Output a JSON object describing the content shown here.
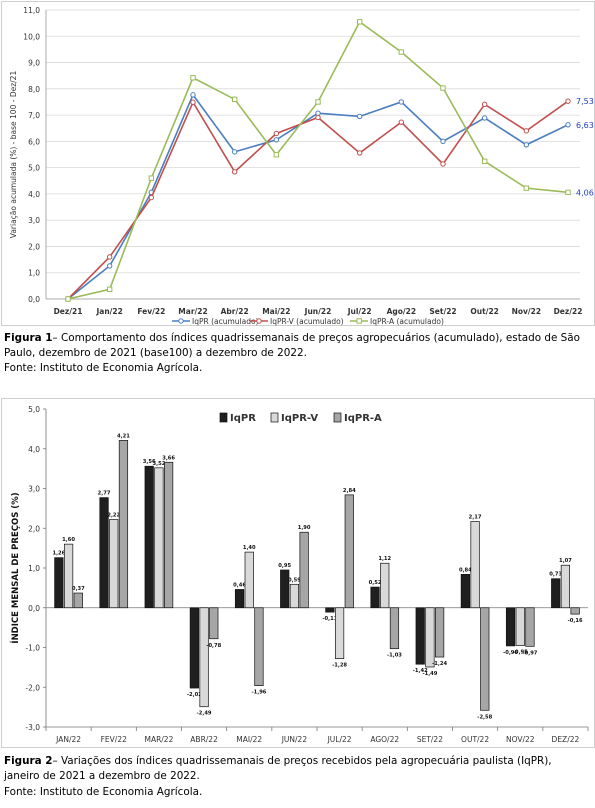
{
  "figure1": {
    "chart_data": {
      "type": "line",
      "title": "",
      "xlabel": "",
      "ylabel": "Variação acumulada (%) - base 100 - Dez/21",
      "ylim": [
        0,
        11
      ],
      "yticks": [
        "0,0",
        "1,0",
        "2,0",
        "3,0",
        "4,0",
        "5,0",
        "6,0",
        "7,0",
        "8,0",
        "9,0",
        "10,0",
        "11,0"
      ],
      "categories": [
        "Dez/21",
        "Jan/22",
        "Fev/22",
        "Mar/22",
        "Abr/22",
        "Mai/22",
        "Jun/22",
        "Jul/22",
        "Ago/22",
        "Set/22",
        "Out/22",
        "Nov/22",
        "Dez/22"
      ],
      "grid": true,
      "legend": "bottom",
      "series": [
        {
          "name": "IqPR (acumulado)",
          "color": "#4a7ebf",
          "values": [
            0,
            1.26,
            4.06,
            7.77,
            5.6,
            6.06,
            7.07,
            6.95,
            7.5,
            6.0,
            6.89,
            5.87,
            6.63
          ],
          "end_label": "6,63",
          "end_label_color": "#1f3fbf"
        },
        {
          "name": "IqPR-V (acumulado)",
          "color": "#c0504d",
          "values": [
            0,
            1.6,
            3.86,
            7.49,
            4.84,
            6.3,
            6.91,
            5.56,
            6.73,
            5.14,
            7.41,
            6.4,
            7.53
          ],
          "end_label": "7,53",
          "end_label_color": "#1f3fbf"
        },
        {
          "name": "IqPR-A (acumulado)",
          "color": "#9bbb59",
          "values": [
            0,
            0.37,
            4.6,
            8.42,
            7.6,
            5.49,
            7.5,
            10.55,
            9.4,
            8.03,
            5.24,
            4.22,
            4.06
          ],
          "end_label": "4,06",
          "end_label_color": "#1f3fbf"
        }
      ]
    },
    "caption_label": "Figura 1",
    "caption_text": "– Comportamento dos índices quadrissemanais de preços agropecuários (acumulado), estado de São Paulo, dezembro de 2021 (base100) a dezembro de 2022.",
    "source": "Fonte: Instituto de Economia Agrícola."
  },
  "figure2": {
    "chart_data": {
      "type": "bar",
      "title": "",
      "xlabel": "",
      "ylabel": "ÍNDICE MENSAL DE PREÇOS (%)",
      "ylim": [
        -3,
        5
      ],
      "yticks": [
        "-3,0",
        "-2,0",
        "-1,0",
        "0,0",
        "1,0",
        "2,0",
        "3,0",
        "4,0",
        "5,0"
      ],
      "categories": [
        "JAN/22",
        "FEV/22",
        "MAR/22",
        "ABR/22",
        "MAI/22",
        "JUN/22",
        "JUL/22",
        "AGO/22",
        "SET/22",
        "OUT/22",
        "NOV/22",
        "DEZ/22"
      ],
      "legend": "top",
      "series": [
        {
          "name": "IqPR",
          "color": "#1f1f1f",
          "values": [
            1.26,
            2.77,
            3.56,
            -2.02,
            0.46,
            0.95,
            -0.11,
            0.52,
            -1.42,
            0.84,
            -0.96,
            0.73
          ],
          "labels": [
            "1,26",
            "2,77",
            "3,56",
            "-2,02",
            "0,46",
            "0,95",
            "-0,11",
            "0,52",
            "-1,42",
            "0,84",
            "-0,96",
            "0,73"
          ]
        },
        {
          "name": "IqPR-V",
          "color": "#d9d9d9",
          "values": [
            1.6,
            2.22,
            3.52,
            -2.49,
            1.4,
            0.59,
            -1.28,
            1.12,
            -1.49,
            2.17,
            -0.95,
            1.07
          ],
          "labels": [
            "1,60",
            "2,22",
            "3,52",
            "-2,49",
            "1,40",
            "0,59",
            "-1,28",
            "1,12",
            "-1,49",
            "2,17",
            "-0,95",
            "1,07"
          ]
        },
        {
          "name": "IqPR-A",
          "color": "#a6a6a6",
          "values": [
            0.37,
            4.21,
            3.66,
            -0.78,
            -1.96,
            1.9,
            2.84,
            -1.03,
            -1.24,
            -2.58,
            -0.97,
            -0.16
          ],
          "labels": [
            "0,37",
            "4,21",
            "3,66",
            "-0,78",
            "-1,96",
            "1,90",
            "2,84",
            "-1,03",
            "-1,24",
            "-2,58",
            "-0,97",
            "-0,16"
          ]
        }
      ]
    },
    "caption_label": "Figura 2",
    "caption_text": "– Variações dos índices quadrissemanais de preços recebidos pela agropecuária paulista (IqPR), janeiro de 2021 a dezembro de 2022.",
    "source": "Fonte: Instituto de Economia Agrícola."
  }
}
